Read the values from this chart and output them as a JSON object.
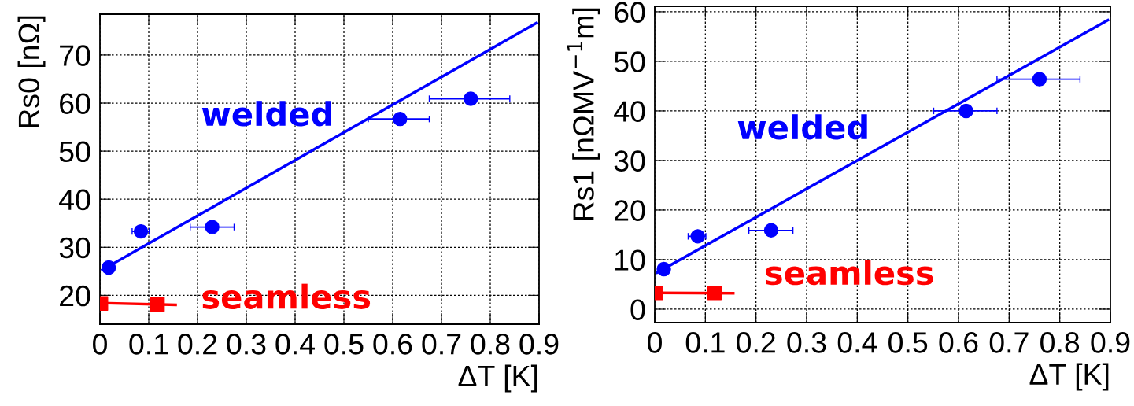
{
  "chart_data": [
    {
      "type": "scatter",
      "xlabel": "ΔT [K]",
      "ylabel": "Rs0 [nΩ]",
      "xlim": [
        0,
        0.9
      ],
      "ylim": [
        14,
        78.5
      ],
      "xticks": [
        0,
        0.1,
        0.2,
        0.3,
        0.4,
        0.5,
        0.6,
        0.7,
        0.8,
        0.9
      ],
      "yticks": [
        20,
        30,
        40,
        50,
        60,
        70
      ],
      "grid": true,
      "series": [
        {
          "name": "welded",
          "color": "#0000ff",
          "marker": "circle",
          "x": [
            0.018,
            0.084,
            0.23,
            0.615,
            0.76
          ],
          "values": [
            25.8,
            33.3,
            34.2,
            56.7,
            60.9
          ],
          "xerrors": [
            null,
            [
              0.066,
              0.101
            ],
            [
              0.185,
              0.275
            ],
            [
              0.55,
              0.675
            ],
            [
              0.675,
              0.84
            ]
          ]
        },
        {
          "type": "line",
          "color": "#0000ff",
          "x": [
            0.005,
            0.895
          ],
          "values": [
            25.3,
            76.7
          ]
        },
        {
          "name": "seamless",
          "color": "#ff0000",
          "marker": "square",
          "x": [
            0.002,
            0.118
          ],
          "values": [
            18.3,
            18.1
          ]
        },
        {
          "type": "line",
          "color": "#ff0000",
          "x": [
            0.0,
            0.155
          ],
          "values": [
            18.4,
            18.0
          ]
        }
      ]
    },
    {
      "type": "scatter",
      "xlabel": "ΔT [K]",
      "ylabel": "Rs1 [nΩMV$^{−1}$m]",
      "xlim": [
        0,
        0.9
      ],
      "ylim": [
        -2.7,
        61.1
      ],
      "xticks": [
        0,
        0.1,
        0.2,
        0.3,
        0.4,
        0.5,
        0.6,
        0.7,
        0.8,
        0.9
      ],
      "yticks": [
        0,
        10,
        20,
        30,
        40,
        50,
        60
      ],
      "grid": true,
      "series": [
        {
          "name": "welded",
          "color": "#0000ff",
          "marker": "circle",
          "x": [
            0.018,
            0.085,
            0.23,
            0.615,
            0.76
          ],
          "values": [
            8.1,
            14.7,
            15.9,
            40.0,
            46.4
          ],
          "xerrors": [
            null,
            [
              0.066,
              0.101
            ],
            [
              0.186,
              0.273
            ],
            [
              0.551,
              0.676
            ],
            [
              0.676,
              0.84
            ]
          ]
        },
        {
          "type": "line",
          "color": "#0000ff",
          "x": [
            0.005,
            0.895
          ],
          "values": [
            7.4,
            58.3
          ]
        },
        {
          "name": "seamless",
          "color": "#ff0000",
          "marker": "square",
          "x": [
            0.002,
            0.118
          ],
          "values": [
            3.3,
            3.3
          ]
        },
        {
          "type": "line",
          "color": "#ff0000",
          "x": [
            0.0,
            0.155
          ],
          "values": [
            3.3,
            3.2
          ]
        }
      ]
    }
  ]
}
